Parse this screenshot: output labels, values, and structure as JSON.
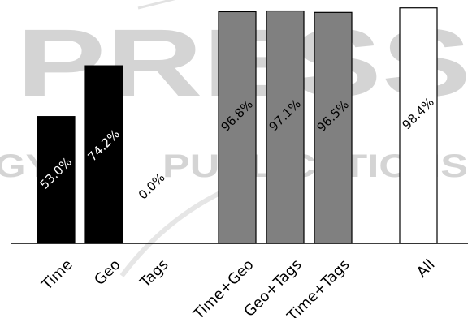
{
  "watermark": {
    "main": "PRESS",
    "sub": "PUBLICATIONS",
    "sub_partial": "OLOGY",
    "color": "#d4d4d4"
  },
  "chart_data": {
    "type": "bar",
    "categories": [
      "Time",
      "Geo",
      "Tags",
      "Time+Geo",
      "Geo+Tags",
      "Time+Tags",
      "All"
    ],
    "values": [
      53.0,
      74.2,
      0.0,
      96.8,
      97.1,
      96.5,
      98.4
    ],
    "value_labels": [
      "53.0%",
      "74.2%",
      "0.0%",
      "96.8%",
      "97.1%",
      "96.5%",
      "98.4%"
    ],
    "groups": [
      0,
      0,
      0,
      1,
      1,
      1,
      2
    ],
    "colors": [
      "#000000",
      "#000000",
      "#000000",
      "#808080",
      "#808080",
      "#808080",
      "#ffffff"
    ],
    "label_colors": [
      "#ffffff",
      "#ffffff",
      "#000000",
      "#000000",
      "#000000",
      "#000000",
      "#000000"
    ],
    "title": "",
    "xlabel": "",
    "ylabel": "",
    "ylim": [
      0,
      100
    ],
    "grid": false,
    "legend": "none"
  }
}
